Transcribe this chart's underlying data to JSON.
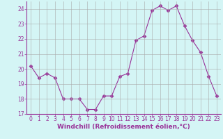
{
  "x": [
    0,
    1,
    2,
    3,
    4,
    5,
    6,
    7,
    8,
    9,
    10,
    11,
    12,
    13,
    14,
    15,
    16,
    17,
    18,
    19,
    20,
    21,
    22,
    23
  ],
  "y": [
    20.2,
    19.4,
    19.7,
    19.4,
    18.0,
    18.0,
    18.0,
    17.3,
    17.3,
    18.2,
    18.2,
    19.5,
    19.7,
    21.9,
    22.2,
    23.9,
    24.2,
    23.9,
    24.2,
    22.9,
    21.9,
    21.1,
    19.5,
    18.2
  ],
  "line_color": "#993399",
  "marker": "D",
  "marker_size": 2.5,
  "bg_color": "#d4f5f5",
  "grid_color": "#aaaaaa",
  "xlabel": "Windchill (Refroidissement éolien,°C)",
  "ylabel": "",
  "ylim": [
    17.0,
    24.5
  ],
  "xlim": [
    -0.5,
    23.5
  ],
  "yticks": [
    17,
    18,
    19,
    20,
    21,
    22,
    23,
    24
  ],
  "xticks": [
    0,
    1,
    2,
    3,
    4,
    5,
    6,
    7,
    8,
    9,
    10,
    11,
    12,
    13,
    14,
    15,
    16,
    17,
    18,
    19,
    20,
    21,
    22,
    23
  ],
  "font_color": "#993399",
  "label_fontsize": 6.5,
  "tick_fontsize": 5.5
}
